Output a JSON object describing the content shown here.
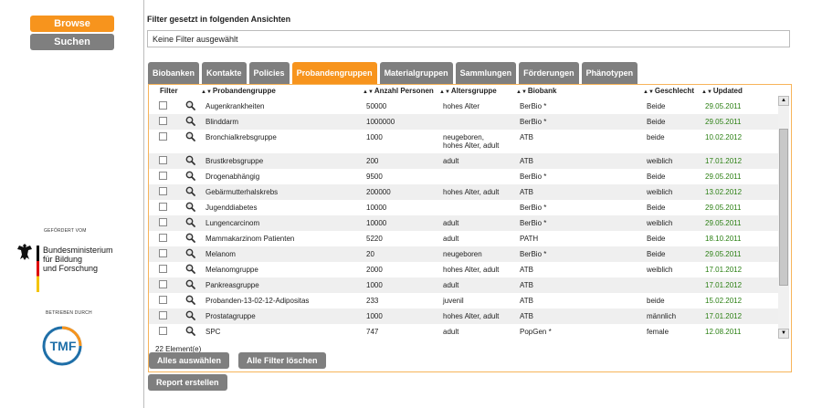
{
  "nav": {
    "browse": "Browse",
    "suchen": "Suchen"
  },
  "sponsor": {
    "funded_by": "GEFÖRDERT VOM",
    "ministry_lines": [
      "Bundesministerium",
      "für Bildung",
      "und Forschung"
    ],
    "run_by": "BETRIEBEN DURCH",
    "tmf_logo": "TMF"
  },
  "filter": {
    "title": "Filter gesetzt in folgenden Ansichten",
    "value": "Keine Filter ausgewählt"
  },
  "tabs": [
    {
      "label": "Biobanken",
      "active": false
    },
    {
      "label": "Kontakte",
      "active": false
    },
    {
      "label": "Policies",
      "active": false
    },
    {
      "label": "Probandengruppen",
      "active": true
    },
    {
      "label": "Materialgruppen",
      "active": false
    },
    {
      "label": "Sammlungen",
      "active": false
    },
    {
      "label": "Förderungen",
      "active": false
    },
    {
      "label": "Phänotypen",
      "active": false
    }
  ],
  "table": {
    "columns": {
      "filter": "Filter",
      "group": "Probandengruppe",
      "count": "Anzahl Personen",
      "age": "Altersgruppe",
      "biobank": "Biobank",
      "sex": "Geschlecht",
      "updated": "Updated"
    },
    "rows": [
      {
        "group": "Augenkrankheiten",
        "count": "50000",
        "age": "hohes Alter",
        "biobank": "BerBio *",
        "sex": "Beide",
        "updated": "29.05.2011"
      },
      {
        "group": "Blinddarm",
        "count": "1000000",
        "age": "",
        "biobank": "BerBio *",
        "sex": "Beide",
        "updated": "29.05.2011"
      },
      {
        "group": "Bronchialkrebsgruppe",
        "count": "1000",
        "age": "neugeboren,",
        "age2": "hohes Alter, adult",
        "biobank": "ATB",
        "sex": "beide",
        "updated": "10.02.2012"
      },
      {
        "group": "Brustkrebsgruppe",
        "count": "200",
        "age": "adult",
        "biobank": "ATB",
        "sex": "weiblich",
        "updated": "17.01.2012"
      },
      {
        "group": "Drogenabhängig",
        "count": "9500",
        "age": "",
        "biobank": "BerBio *",
        "sex": "Beide",
        "updated": "29.05.2011"
      },
      {
        "group": "Gebärmutterhalskrebs",
        "count": "200000",
        "age": "hohes Alter, adult",
        "biobank": "ATB",
        "sex": "weiblich",
        "updated": "13.02.2012"
      },
      {
        "group": "Jugenddiabetes",
        "count": "10000",
        "age": "",
        "biobank": "BerBio *",
        "sex": "Beide",
        "updated": "29.05.2011"
      },
      {
        "group": "Lungencarcinom",
        "count": "10000",
        "age": "adult",
        "biobank": "BerBio *",
        "sex": "weiblich",
        "updated": "29.05.2011"
      },
      {
        "group": "Mammakarzinom Patienten",
        "count": "5220",
        "age": "adult",
        "biobank": "PATH",
        "sex": "Beide",
        "updated": "18.10.2011"
      },
      {
        "group": "Melanom",
        "count": "20",
        "age": "neugeboren",
        "biobank": "BerBio *",
        "sex": "Beide",
        "updated": "29.05.2011"
      },
      {
        "group": "Melanomgruppe",
        "count": "2000",
        "age": "hohes Alter, adult",
        "biobank": "ATB",
        "sex": "weiblich",
        "updated": "17.01.2012"
      },
      {
        "group": "Pankreasgruppe",
        "count": "1000",
        "age": "adult",
        "biobank": "ATB",
        "sex": "",
        "updated": "17.01.2012"
      },
      {
        "group": "Probanden-13-02-12-Adipositas",
        "count": "233",
        "age": "juvenil",
        "biobank": "ATB",
        "sex": "beide",
        "updated": "15.02.2012"
      },
      {
        "group": "Prostatagruppe",
        "count": "1000",
        "age": "hohes Alter, adult",
        "biobank": "ATB",
        "sex": "männlich",
        "updated": "17.01.2012"
      },
      {
        "group": "SPC",
        "count": "747",
        "age": "adult",
        "biobank": "PopGen *",
        "sex": "female",
        "updated": "12.08.2011"
      }
    ],
    "count_label": "22 Element(e)"
  },
  "buttons": {
    "select_all": "Alles auswählen",
    "clear_filters": "Alle Filter löschen",
    "report": "Report erstellen"
  },
  "colors": {
    "accent": "#f7941d",
    "tab_gray": "#7f7f7f",
    "updated_green": "#2a7f12"
  }
}
